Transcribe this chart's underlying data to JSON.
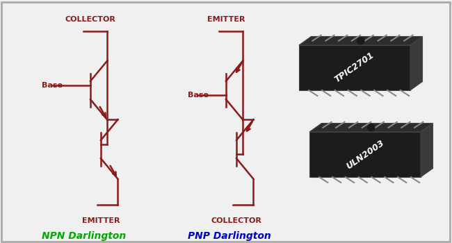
{
  "bg_color": "#f0f0f0",
  "border_color": "#cccccc",
  "transistor_color": "#8B1A1A",
  "npn_label": "NPN Darlington",
  "pnp_label": "PNP Darlington",
  "npn_color": "#00aa00",
  "pnp_color": "#0000cc",
  "label_color": "#8B1A1A",
  "chip1_label": "TPIC2701",
  "chip2_label": "ULN2003",
  "chip_body_color": "#1a1a1a",
  "chip_side_color": "#2a2a2a",
  "chip_top_color": "#333333",
  "chip_pin_color": "#555555",
  "chip_text_color": "#ffffff"
}
